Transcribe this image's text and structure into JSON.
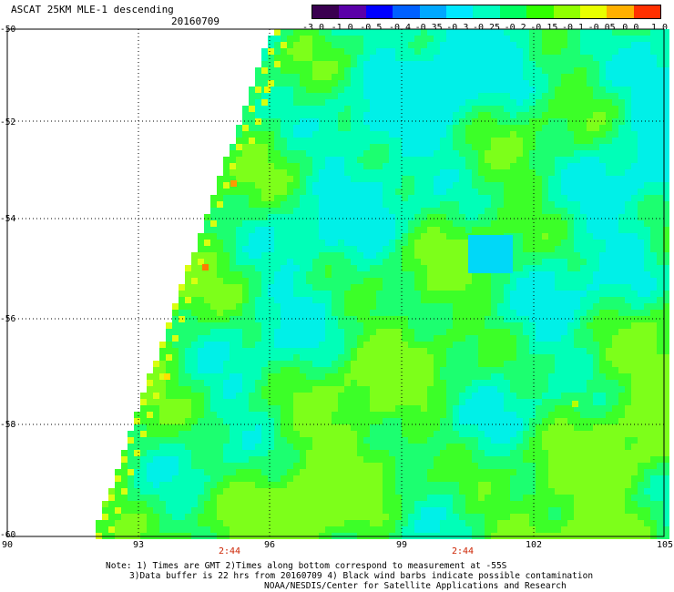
{
  "header": {
    "title": "ASCAT 25KM MLE-1 descending",
    "date": "20160709"
  },
  "colorbar": {
    "colors": [
      "#3a0050",
      "#5a00a8",
      "#0000ff",
      "#0060ff",
      "#00a8ff",
      "#00e8ff",
      "#00ffc0",
      "#00ff60",
      "#30ff00",
      "#90ff00",
      "#e8ff00",
      "#ffb000",
      "#ff3000"
    ],
    "ticks": [
      "-3.0",
      "-1.0",
      "-0.5",
      "-0.4",
      "-0.35",
      "-0.3",
      "-0.25",
      "-0.2",
      "-0.15",
      "-0.1",
      "-0.05",
      "0.0",
      "1.0"
    ]
  },
  "map": {
    "lat_labels": [
      "-50",
      "-52",
      "-54",
      "-56",
      "-58",
      "-60"
    ],
    "lon_labels": [
      "90",
      "93",
      "96",
      "99",
      "102",
      "105"
    ],
    "times": [
      "2:44",
      "2:44"
    ]
  },
  "notes": [
    "Note: 1) Times are GMT 2)Times along bottom correspond to measurement at -55S",
    "3)Data buffer is 22 hrs from 20160709 4) Black wind barbs indicate possible contamination",
    "NOAA/NESDIS/Center for Satellite Applications and Research"
  ]
}
